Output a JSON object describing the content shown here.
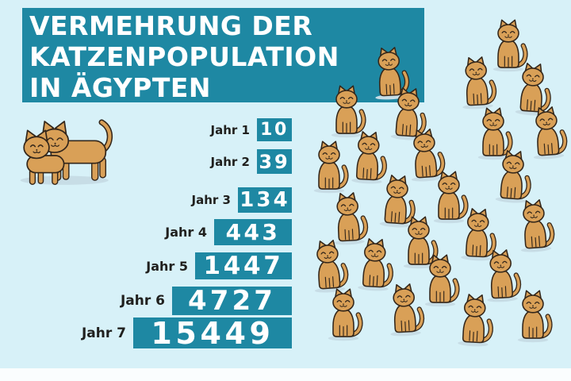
{
  "title": {
    "line1": "VERMEHRUNG DER",
    "line2": "KATZENPOPULATION",
    "line3": "IN ÄGYPTEN"
  },
  "chart_data": {
    "type": "bar",
    "orientation": "horizontal",
    "title": "Vermehrung der Katzenpopulation in Ägypten",
    "categories": [
      "Jahr 1",
      "Jahr 2",
      "Jahr 3",
      "Jahr 4",
      "Jahr 5",
      "Jahr 6",
      "Jahr 7"
    ],
    "values": [
      10,
      39,
      134,
      443,
      1447,
      4727,
      15449
    ],
    "value_labels": [
      "10",
      "39",
      "134",
      "443",
      "1447",
      "4727",
      "15449"
    ],
    "xlabel": "",
    "ylabel": "",
    "bar_color": "#1e88a3",
    "value_label_color": "#ffffff",
    "category_label_color": "#20201e",
    "grid": false,
    "legend": false,
    "scale_note": "bar lengths illustrative, not proportional"
  },
  "illustration": {
    "standing_cats_pair": 2,
    "sitting_cats_count": 26,
    "cat_body_color": "#d9a057",
    "cat_outline_color": "#33261a",
    "cat_shadow_color": "#c7dde6"
  },
  "colors": {
    "background": "#d7f1f8",
    "panel_teal": "#1e88a3",
    "footer_strip": "#fafdfe",
    "title_text": "#ffffff",
    "label_text": "#20201e"
  }
}
